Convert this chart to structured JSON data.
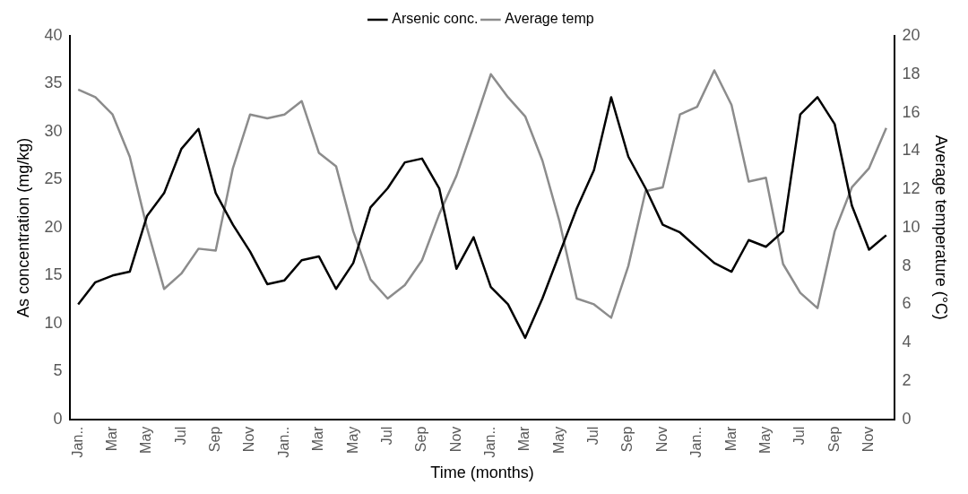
{
  "chart_data": {
    "type": "line",
    "xlabel": "Time (months)",
    "ylabel": "As concentration (mg/kg)",
    "y2label": "Average temperature (°C)",
    "categories": [
      "Jan..",
      null,
      "Mar",
      null,
      "May",
      null,
      "Jul",
      null,
      "Sep",
      null,
      "Nov",
      null,
      "Jan..",
      null,
      "Mar",
      null,
      "May",
      null,
      "Jul",
      null,
      "Sep",
      null,
      "Nov",
      null,
      "Jan..",
      null,
      "Mar",
      null,
      "May",
      null,
      "Jul",
      null,
      "Sep",
      null,
      "Nov",
      null,
      "Jan..",
      null,
      "Mar",
      null,
      "May",
      null,
      "Jul",
      null,
      "Sep",
      null,
      "Nov",
      null
    ],
    "series": [
      {
        "name": "Arsenic conc.",
        "color": "#000000",
        "values": [
          12.0,
          14.3,
          15.0,
          15.4,
          21.2,
          23.6,
          28.2,
          30.3,
          23.6,
          20.3,
          17.5,
          14.1,
          14.5,
          16.6,
          17.0,
          13.6,
          16.3,
          22.1,
          24.1,
          26.8,
          27.2,
          24.1,
          15.7,
          19.0,
          13.8,
          12.0,
          8.5,
          12.6,
          17.3,
          22.0,
          26.0,
          33.6,
          27.4,
          24.1,
          20.3,
          19.5,
          17.9,
          16.3,
          15.4,
          18.7,
          18.0,
          19.6,
          31.8,
          33.6,
          30.8,
          22.3,
          17.7,
          19.2
        ]
      },
      {
        "name": "Average temp",
        "color": "#8c8c8c",
        "axis": "y2",
        "values": [
          17.2,
          16.8,
          15.9,
          13.7,
          10.0,
          6.8,
          7.6,
          8.9,
          8.8,
          13.1,
          15.9,
          15.7,
          15.9,
          16.6,
          13.9,
          13.2,
          9.8,
          7.3,
          6.3,
          7.0,
          8.3,
          10.7,
          12.7,
          15.3,
          18.0,
          16.8,
          15.8,
          13.5,
          10.3,
          6.3,
          6.0,
          5.3,
          8.0,
          11.9,
          12.1,
          15.9,
          16.3,
          18.2,
          16.4,
          12.4,
          12.6,
          8.1,
          6.6,
          5.8,
          9.8,
          12.1,
          13.1,
          15.2
        ]
      }
    ],
    "ylim": [
      0,
      40
    ],
    "yticks": [
      0,
      5,
      10,
      15,
      20,
      25,
      30,
      35,
      40
    ],
    "y2lim": [
      0,
      20
    ],
    "y2ticks": [
      0,
      2,
      4,
      6,
      8,
      10,
      12,
      14,
      16,
      18,
      20
    ],
    "grid": false,
    "legend": "top",
    "marker": "none",
    "line_style": "solid"
  }
}
